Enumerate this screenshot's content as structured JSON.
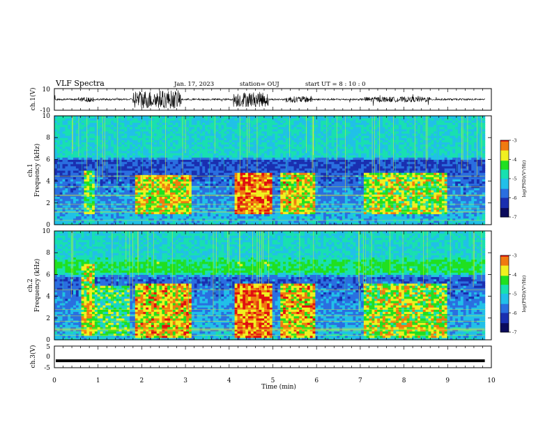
{
  "header": {
    "title": "VLF Spectra",
    "date": "Jan. 17, 2023",
    "station": "station= OUJ",
    "start": "start  UT =  8 : 10 : 0"
  },
  "colors": {
    "colormap": [
      "#0b0b5c",
      "#1a2fb0",
      "#2a6fe0",
      "#21c0e8",
      "#18e0b0",
      "#20e020",
      "#f0f020",
      "#f07a10",
      "#e01010",
      "#ffffff"
    ],
    "axis": "#000000"
  },
  "chart_data": [
    {
      "type": "line",
      "name": "ch1-waveform",
      "ylabel": "ch.1(V)",
      "ylim": [
        -10,
        10
      ],
      "yticks": [
        "10",
        "-10"
      ],
      "xlim": [
        0,
        10
      ],
      "baseline": 0,
      "bursts": [
        {
          "t": [
            0.6,
            0.9
          ],
          "amp": 2.5
        },
        {
          "t": [
            1.8,
            2.9
          ],
          "amp": 8.5
        },
        {
          "t": [
            4.1,
            4.9
          ],
          "amp": 7.0
        },
        {
          "t": [
            5.3,
            5.9
          ],
          "amp": 3.0
        },
        {
          "t": [
            7.1,
            8.6
          ],
          "amp": 2.5
        }
      ]
    },
    {
      "type": "heatmap",
      "name": "ch1-spectrogram",
      "ylabel": "ch.1\nFrequency (kHz)",
      "ylim": [
        0,
        10
      ],
      "yticks": [
        "0",
        "2",
        "4",
        "6",
        "8",
        "10"
      ],
      "xlim": [
        0,
        9.85
      ],
      "colorbar": {
        "label": "log(PSD)(V²/Hz)",
        "range": [
          -7,
          -3
        ],
        "ticks": [
          "-3",
          "-4",
          "-5",
          "-6",
          "-7"
        ]
      },
      "background_level": [
        [
          0,
          0.4
        ],
        [
          6,
          0.2
        ],
        [
          6.2,
          0.45
        ],
        [
          10,
          0.45
        ]
      ],
      "active_blocks": [
        {
          "t": [
            0.65,
            0.9
          ],
          "f": [
            1.0,
            5.0
          ],
          "level": 0.62
        },
        {
          "t": [
            1.85,
            3.15
          ],
          "f": [
            1.0,
            4.6
          ],
          "level": 0.72
        },
        {
          "t": [
            4.15,
            5.0
          ],
          "f": [
            1.0,
            4.8
          ],
          "level": 0.85
        },
        {
          "t": [
            5.2,
            6.0
          ],
          "f": [
            1.0,
            4.8
          ],
          "level": 0.72
        },
        {
          "t": [
            7.1,
            9.0
          ],
          "f": [
            1.0,
            4.8
          ],
          "level": 0.66
        }
      ]
    },
    {
      "type": "heatmap",
      "name": "ch2-spectrogram",
      "ylabel": "ch.2\nFrequency (kHz)",
      "ylim": [
        0,
        10
      ],
      "yticks": [
        "0",
        "2",
        "4",
        "6",
        "8",
        "10"
      ],
      "xlim": [
        0,
        9.85
      ],
      "colorbar": {
        "label": "log(PSD)(V²/Hz)",
        "range": [
          -7,
          -3
        ],
        "ticks": [
          "-3",
          "-4",
          "-5",
          "-6",
          "-7"
        ]
      },
      "background_level": [
        [
          0,
          0.4
        ],
        [
          5.8,
          0.25
        ],
        [
          6.2,
          0.58
        ],
        [
          7.2,
          0.58
        ],
        [
          7.6,
          0.45
        ],
        [
          10,
          0.45
        ]
      ],
      "active_blocks": [
        {
          "t": [
            0.6,
            0.9
          ],
          "f": [
            0.5,
            7.0
          ],
          "level": 0.7
        },
        {
          "t": [
            0.9,
            1.75
          ],
          "f": [
            0.5,
            5.0
          ],
          "level": 0.55
        },
        {
          "t": [
            1.85,
            3.15
          ],
          "f": [
            0.3,
            5.2
          ],
          "level": 0.75
        },
        {
          "t": [
            4.1,
            5.0
          ],
          "f": [
            0.3,
            5.2
          ],
          "level": 0.85
        },
        {
          "t": [
            5.2,
            6.0
          ],
          "f": [
            0.3,
            5.2
          ],
          "level": 0.75
        },
        {
          "t": [
            7.1,
            9.0
          ],
          "f": [
            0.3,
            5.2
          ],
          "level": 0.68
        }
      ]
    },
    {
      "type": "line",
      "name": "ch3-waveform",
      "ylabel": "ch.3(V)",
      "ylim": [
        -5,
        5
      ],
      "yticks": [
        "5",
        "0",
        "-5"
      ],
      "xlim": [
        0,
        10
      ],
      "baseline": -1.8,
      "thickness_note": "solid band"
    }
  ],
  "xaxis": {
    "label": "Time (min)",
    "ticks": [
      "0",
      "1",
      "2",
      "3",
      "4",
      "5",
      "6",
      "7",
      "8",
      "9",
      "10"
    ],
    "range": [
      0,
      10
    ]
  }
}
